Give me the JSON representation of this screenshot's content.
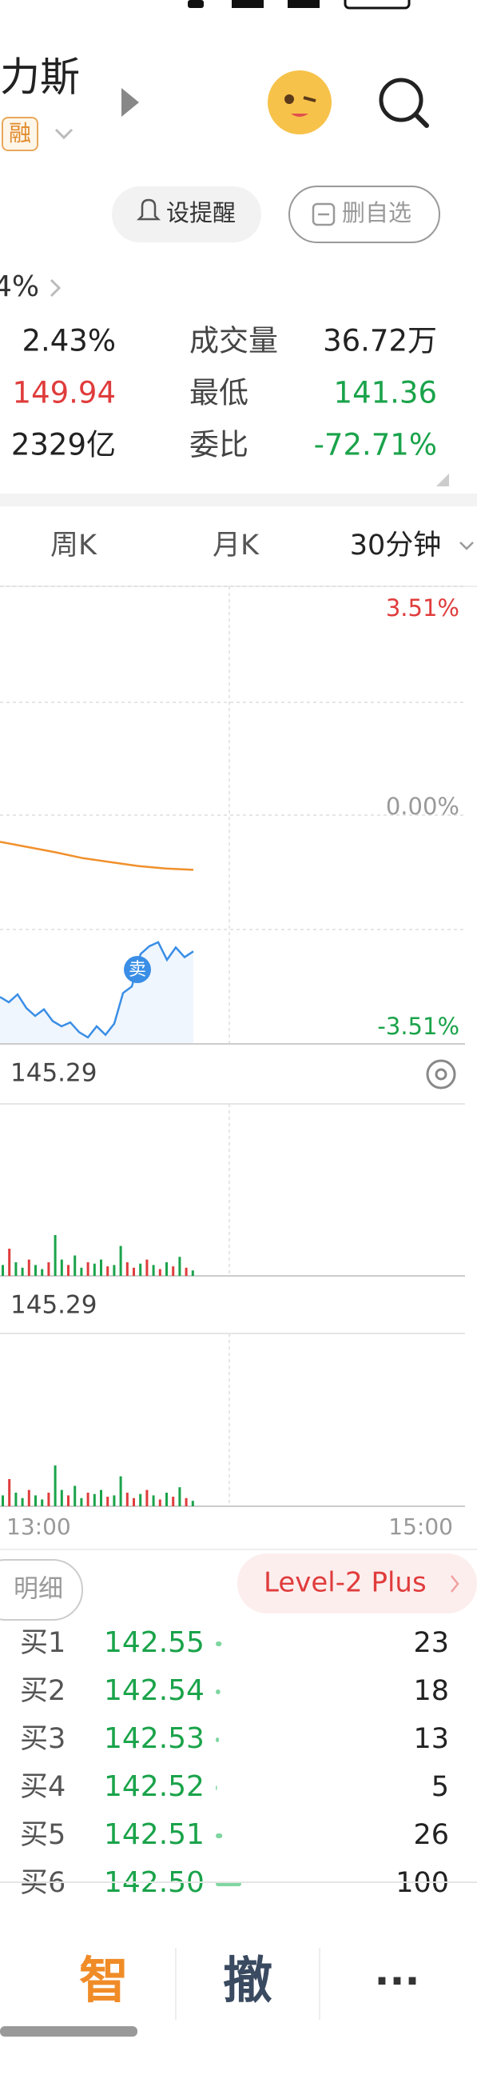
{
  "header": {
    "name": "力斯",
    "badge": "融",
    "remind": "设提醒",
    "remove": "删自选",
    "change": "4%"
  },
  "stats": [
    [
      "2.43%",
      "成交量",
      "36.72万"
    ],
    [
      "149.94",
      "最低",
      "141.36"
    ],
    [
      "2329亿",
      "委比",
      "-72.71%"
    ]
  ],
  "stat_colors": [
    [
      "#222222",
      "#222222"
    ],
    [
      "#e03c3c",
      "#1aa34a"
    ],
    [
      "#222222",
      "#1aa34a"
    ]
  ],
  "tabs": [
    "周K",
    "月K",
    "30分钟"
  ],
  "chart_data": {
    "type": "line",
    "ylim": [
      -3.51,
      3.51
    ],
    "yticks": [
      {
        "value": 3.51,
        "label": "3.51%"
      },
      {
        "value": 0,
        "label": "0.00%"
      },
      {
        "value": -3.51,
        "label": "-3.51%"
      }
    ],
    "ytick_colors": [
      "#e03c3c",
      "#999999",
      "#1aa34a"
    ],
    "series": [
      {
        "color": "#3a8ee6",
        "values": [
          -2.79,
          -2.87,
          -2.75,
          -2.96,
          -3.08,
          -2.98,
          -3.16,
          -3.24,
          -3.18,
          -3.33,
          -3.41,
          -3.24,
          -3.37,
          -3.2,
          -2.73,
          -2.63,
          -2.13,
          -2.01,
          -1.95,
          -2.22,
          -2.03,
          -2.18,
          -2.09
        ]
      },
      {
        "color": "#f0902c",
        "values": [
          -0.41,
          -0.49,
          -0.57,
          -0.66,
          -0.72,
          -0.78,
          -0.82,
          -0.84
        ]
      }
    ],
    "marker": "卖",
    "time_labels": [
      "13:00",
      "15:00"
    ]
  },
  "volume_panels": [
    {
      "label": "145.29",
      "values": [
        8,
        20,
        10,
        6,
        12,
        8,
        5,
        10,
        30,
        12,
        8,
        15,
        6,
        10,
        9,
        12,
        7,
        8,
        22,
        10,
        6,
        9,
        12,
        8,
        5,
        10,
        7,
        14,
        6,
        4
      ],
      "colors": [
        "#1aa34a",
        "#e03c3c",
        "#1aa34a",
        "#1aa34a",
        "#e03c3c",
        "#1aa34a",
        "#1aa34a",
        "#e03c3c",
        "#1aa34a",
        "#1aa34a",
        "#e03c3c",
        "#1aa34a",
        "#1aa34a",
        "#e03c3c",
        "#1aa34a",
        "#1aa34a",
        "#e03c3c",
        "#1aa34a",
        "#1aa34a",
        "#e03c3c",
        "#e03c3c",
        "#1aa34a",
        "#e03c3c",
        "#1aa34a",
        "#e03c3c",
        "#1aa34a",
        "#e03c3c",
        "#1aa34a",
        "#e03c3c",
        "#1aa34a"
      ]
    },
    {
      "label": "145.29",
      "values": [
        8,
        20,
        10,
        6,
        12,
        8,
        5,
        10,
        30,
        12,
        8,
        15,
        6,
        10,
        9,
        12,
        7,
        8,
        22,
        10,
        6,
        9,
        12,
        8,
        5,
        10,
        7,
        14,
        6,
        4
      ],
      "colors": [
        "#1aa34a",
        "#e03c3c",
        "#1aa34a",
        "#1aa34a",
        "#e03c3c",
        "#1aa34a",
        "#1aa34a",
        "#e03c3c",
        "#1aa34a",
        "#1aa34a",
        "#e03c3c",
        "#1aa34a",
        "#1aa34a",
        "#e03c3c",
        "#1aa34a",
        "#1aa34a",
        "#e03c3c",
        "#1aa34a",
        "#1aa34a",
        "#e03c3c",
        "#e03c3c",
        "#1aa34a",
        "#e03c3c",
        "#1aa34a",
        "#e03c3c",
        "#1aa34a",
        "#e03c3c",
        "#1aa34a",
        "#e03c3c",
        "#1aa34a"
      ]
    }
  ],
  "detail": "明细",
  "level2": "Level-2 Plus",
  "order_book": [
    {
      "side": "买1",
      "price": "142.55",
      "volume": 23
    },
    {
      "side": "买2",
      "price": "142.54",
      "volume": 18
    },
    {
      "side": "买3",
      "price": "142.53",
      "volume": 13
    },
    {
      "side": "买4",
      "price": "142.52",
      "volume": 5
    },
    {
      "side": "买5",
      "price": "142.51",
      "volume": 26
    },
    {
      "side": "买6",
      "price": "142.50",
      "volume": 100
    }
  ],
  "nav": [
    "智",
    "撤",
    "···"
  ]
}
